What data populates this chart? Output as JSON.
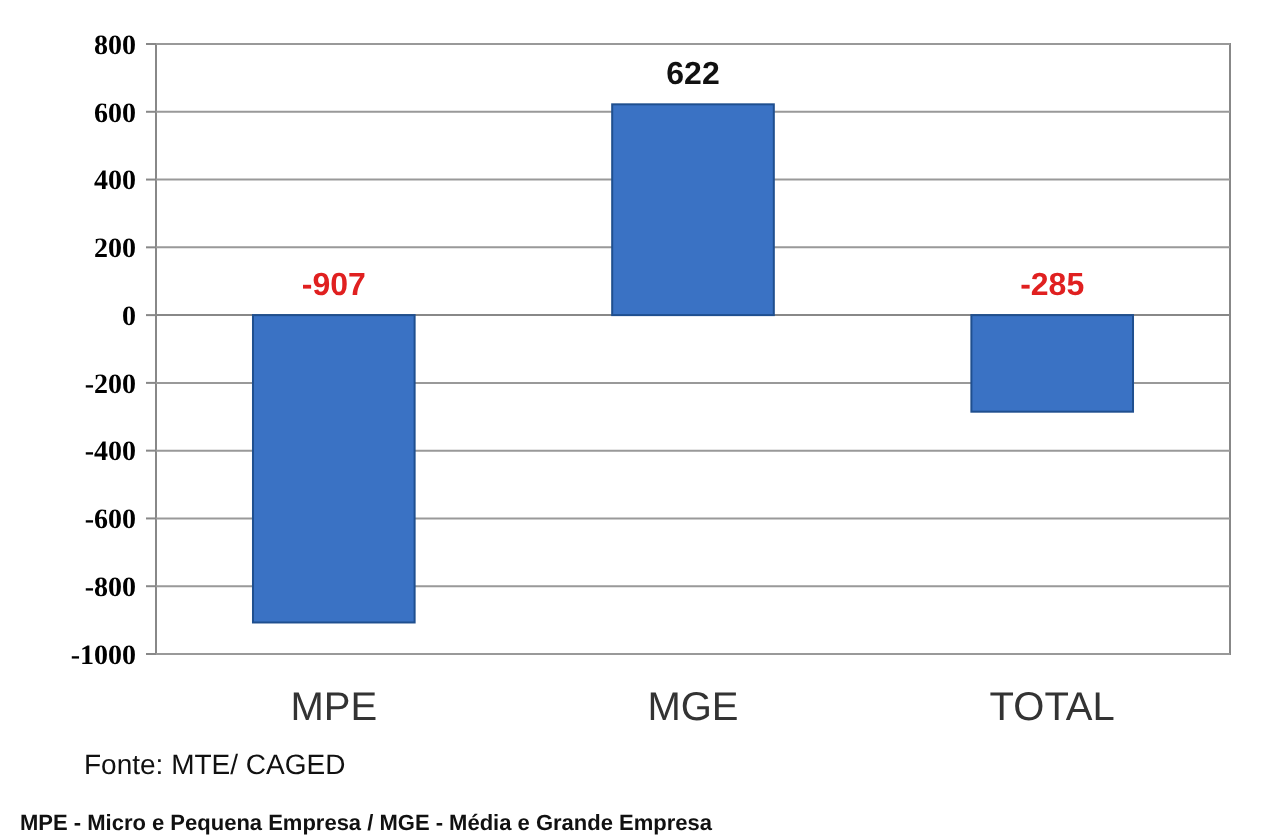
{
  "chart_data": {
    "type": "bar",
    "categories": [
      "MPE",
      "MGE",
      "TOTAL"
    ],
    "values": [
      -907,
      622,
      -285
    ],
    "color": "#3a72c4",
    "ylim": [
      -1000,
      800
    ],
    "yticks": [
      -1000,
      -800,
      -600,
      -400,
      -200,
      0,
      200,
      400,
      600,
      800
    ],
    "grid": "y",
    "data_labels": true,
    "annotations": [
      "Fonte: MTE/ CAGED",
      "MPE - Micro e Pequena Empresa / MGE - Média e Grande Empresa"
    ]
  }
}
